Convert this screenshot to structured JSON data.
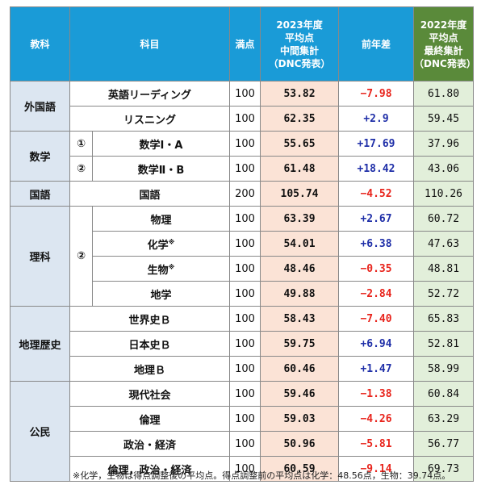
{
  "header": {
    "category": "教科",
    "subject": "科目",
    "full_marks": "満点",
    "avg_2023": [
      "2023年度",
      "平均点",
      "中間集計",
      "（DNC発表）"
    ],
    "diff": "前年差",
    "avg_2022": [
      "2022年度",
      "平均点",
      "最終集計",
      "（DNC発表）"
    ]
  },
  "rows": [
    {
      "category": "外国語",
      "marker": "",
      "subject": "英語リーディング",
      "note": "",
      "full": "100",
      "avg2023": "53.82",
      "diff": "−7.98",
      "sign": "neg",
      "avg2022": "61.80"
    },
    {
      "category": "",
      "marker": "",
      "subject": "リスニング",
      "note": "",
      "full": "100",
      "avg2023": "62.35",
      "diff": "+2.9",
      "sign": "pos",
      "avg2022": "59.45"
    },
    {
      "category": "数学",
      "marker": "①",
      "subject": "数学Ⅰ・A",
      "note": "",
      "full": "100",
      "avg2023": "55.65",
      "diff": "+17.69",
      "sign": "pos",
      "avg2022": "37.96"
    },
    {
      "category": "",
      "marker": "②",
      "subject": "数学Ⅱ・B",
      "note": "",
      "full": "100",
      "avg2023": "61.48",
      "diff": "+18.42",
      "sign": "pos",
      "avg2022": "43.06"
    },
    {
      "category": "国語",
      "marker": "",
      "subject": "国語",
      "note": "",
      "full": "200",
      "avg2023": "105.74",
      "diff": "−4.52",
      "sign": "neg",
      "avg2022": "110.26"
    },
    {
      "category": "理科",
      "marker": "②",
      "subject": "物理",
      "note": "",
      "full": "100",
      "avg2023": "63.39",
      "diff": "+2.67",
      "sign": "pos",
      "avg2022": "60.72"
    },
    {
      "category": "",
      "marker": "",
      "subject": "化学",
      "note": "※",
      "full": "100",
      "avg2023": "54.01",
      "diff": "+6.38",
      "sign": "pos",
      "avg2022": "47.63"
    },
    {
      "category": "",
      "marker": "",
      "subject": "生物",
      "note": "※",
      "full": "100",
      "avg2023": "48.46",
      "diff": "−0.35",
      "sign": "neg",
      "avg2022": "48.81"
    },
    {
      "category": "",
      "marker": "",
      "subject": "地学",
      "note": "",
      "full": "100",
      "avg2023": "49.88",
      "diff": "−2.84",
      "sign": "neg",
      "avg2022": "52.72"
    },
    {
      "category": "地理歴史",
      "marker": "",
      "subject": "世界史Ｂ",
      "note": "",
      "full": "100",
      "avg2023": "58.43",
      "diff": "−7.40",
      "sign": "neg",
      "avg2022": "65.83"
    },
    {
      "category": "",
      "marker": "",
      "subject": "日本史Ｂ",
      "note": "",
      "full": "100",
      "avg2023": "59.75",
      "diff": "+6.94",
      "sign": "pos",
      "avg2022": "52.81"
    },
    {
      "category": "",
      "marker": "",
      "subject": "地理Ｂ",
      "note": "",
      "full": "100",
      "avg2023": "60.46",
      "diff": "+1.47",
      "sign": "pos",
      "avg2022": "58.99"
    },
    {
      "category": "公民",
      "marker": "",
      "subject": "現代社会",
      "note": "",
      "full": "100",
      "avg2023": "59.46",
      "diff": "−1.38",
      "sign": "neg",
      "avg2022": "60.84"
    },
    {
      "category": "",
      "marker": "",
      "subject": "倫理",
      "note": "",
      "full": "100",
      "avg2023": "59.03",
      "diff": "−4.26",
      "sign": "neg",
      "avg2022": "63.29"
    },
    {
      "category": "",
      "marker": "",
      "subject": "政治・経済",
      "note": "",
      "full": "100",
      "avg2023": "50.96",
      "diff": "−5.81",
      "sign": "neg",
      "avg2022": "56.77"
    },
    {
      "category": "",
      "marker": "",
      "subject": "倫理，政治・経済",
      "note": "",
      "full": "100",
      "avg2023": "60.59",
      "diff": "−9.14",
      "sign": "neg",
      "avg2022": "69.73"
    }
  ],
  "footnote": "※化学，生物は得点調整後の平均点。得点調整前の平均点は化学：48.56点，生物：39.74点。"
}
